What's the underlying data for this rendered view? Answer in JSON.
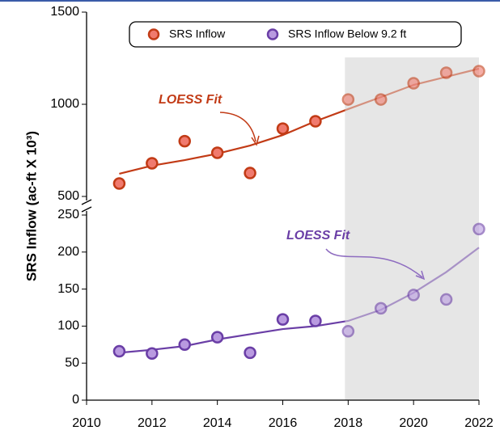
{
  "chart_data": {
    "type": "scatter",
    "y_label": "SRS Inflow (ac-ft X 10³)",
    "x": [
      2011,
      2012,
      2013,
      2014,
      2015,
      2016,
      2017,
      2018,
      2019,
      2020,
      2021,
      2022
    ],
    "xlim": [
      2010,
      2022
    ],
    "xticks": [
      2010,
      2012,
      2014,
      2016,
      2018,
      2020,
      2022
    ],
    "ylim_upper": [
      500,
      1500
    ],
    "yticks_upper": [
      500,
      1000,
      1500
    ],
    "ylim": [
      0,
      250
    ],
    "yticks": [
      0,
      50,
      100,
      150,
      200,
      250
    ],
    "highlight_x": [
      2017.9,
      2022
    ],
    "series": [
      {
        "name": "SRS Inflow",
        "color": "#f07a6e",
        "edge": "#c23b16",
        "panel": "upper",
        "values": [
          570,
          680,
          800,
          737,
          627,
          868,
          908,
          1026,
          1026,
          1114,
          1171,
          1180
        ],
        "fit": [
          623,
          667,
          697,
          732,
          776,
          833,
          908,
          974,
          1039,
          1105,
          1149,
          1193
        ]
      },
      {
        "name": "SRS Inflow Below 9.2 ft",
        "color": "#b99ae0",
        "edge": "#6a3ea6",
        "panel": "lower",
        "values": [
          66,
          63,
          75,
          85,
          64,
          109,
          107,
          93,
          124,
          142,
          136,
          231
        ],
        "fit": [
          64,
          68,
          73,
          82,
          89,
          96,
          100,
          107,
          122,
          145,
          173,
          206
        ]
      }
    ],
    "annotations": [
      "LOESS Fit",
      "LOESS Fit"
    ]
  }
}
